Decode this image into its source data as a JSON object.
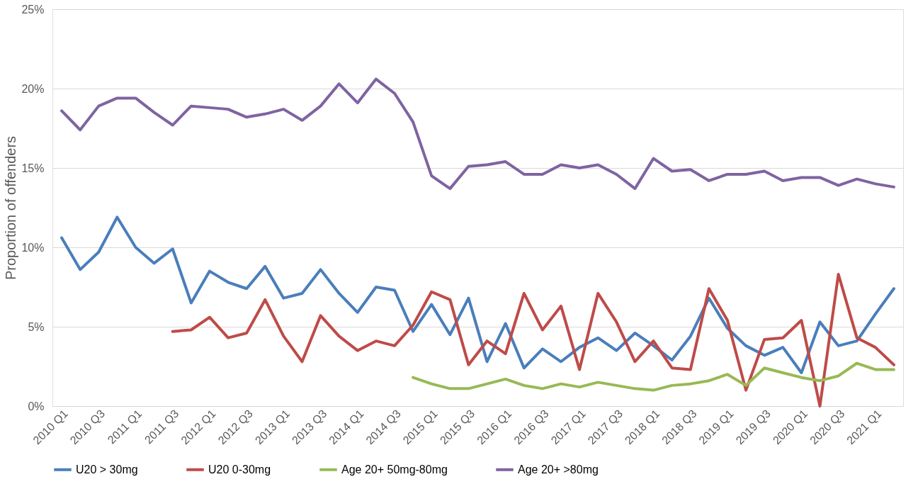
{
  "chart_data": {
    "type": "line",
    "ylabel": "Proportion of offenders",
    "categories": [
      "2010 Q1",
      null,
      "2010 Q3",
      null,
      "2011 Q1",
      null,
      "2011 Q3",
      null,
      "2012 Q1",
      null,
      "2012 Q3",
      null,
      "2013 Q1",
      null,
      "2013 Q3",
      null,
      "2014 Q1",
      null,
      "2014 Q3",
      null,
      "2015 Q1",
      null,
      "2015 Q3",
      null,
      "2016 Q1",
      null,
      "2016 Q3",
      null,
      "2017 Q1",
      null,
      "2017 Q3",
      null,
      "2018 Q1",
      null,
      "2018 Q3",
      null,
      "2019 Q1",
      null,
      "2019 Q3",
      null,
      "2020 Q1",
      null,
      "2020 Q3",
      null,
      "2021 Q1",
      null
    ],
    "series": [
      {
        "name": "U20 > 30mg",
        "color": "#4a7ebb",
        "values": [
          10.6,
          8.6,
          9.7,
          11.9,
          10.0,
          9.0,
          9.9,
          6.5,
          8.5,
          7.8,
          7.4,
          8.8,
          6.8,
          7.1,
          8.6,
          7.1,
          5.9,
          7.5,
          7.3,
          4.7,
          6.4,
          4.5,
          6.8,
          2.8,
          5.2,
          2.4,
          3.6,
          2.8,
          3.7,
          4.3,
          3.5,
          4.6,
          3.8,
          2.9,
          4.4,
          6.8,
          4.9,
          3.8,
          3.2,
          3.7,
          2.1,
          5.3,
          3.8,
          4.1,
          5.8,
          7.4
        ]
      },
      {
        "name": "U20 0-30mg",
        "color": "#be4b48",
        "values": [
          null,
          null,
          null,
          null,
          null,
          null,
          4.7,
          4.8,
          5.6,
          4.3,
          4.6,
          6.7,
          4.4,
          2.8,
          5.7,
          4.4,
          3.5,
          4.1,
          3.8,
          5.1,
          7.2,
          6.7,
          2.6,
          4.1,
          3.3,
          7.1,
          4.8,
          6.3,
          2.3,
          7.1,
          5.3,
          2.8,
          4.1,
          2.4,
          2.3,
          7.4,
          5.4,
          1.0,
          4.2,
          4.3,
          5.4,
          0.0,
          8.3,
          4.3,
          3.7,
          2.6
        ]
      },
      {
        "name": "Age 20+ 50mg-80mg",
        "color": "#98b954",
        "values": [
          null,
          null,
          null,
          null,
          null,
          null,
          null,
          null,
          null,
          null,
          null,
          null,
          null,
          null,
          null,
          null,
          null,
          null,
          null,
          1.8,
          1.4,
          1.1,
          1.1,
          1.4,
          1.7,
          1.3,
          1.1,
          1.4,
          1.2,
          1.5,
          1.3,
          1.1,
          1.0,
          1.3,
          1.4,
          1.6,
          2.0,
          1.3,
          2.4,
          2.1,
          1.8,
          1.6,
          1.9,
          2.7,
          2.3,
          2.3
        ]
      },
      {
        "name": "Age 20+ >80mg",
        "color": "#7f63a1",
        "values": [
          18.6,
          17.4,
          18.9,
          19.4,
          19.4,
          18.5,
          17.7,
          18.9,
          18.8,
          18.7,
          18.2,
          18.4,
          18.7,
          18.0,
          18.9,
          20.3,
          19.1,
          20.6,
          19.7,
          17.9,
          14.5,
          13.7,
          15.1,
          15.2,
          15.4,
          14.6,
          14.6,
          15.2,
          15.0,
          15.2,
          14.6,
          13.7,
          15.6,
          14.8,
          14.9,
          14.2,
          14.6,
          14.6,
          14.8,
          14.2,
          14.4,
          14.4,
          13.9,
          14.3,
          14.0,
          13.8
        ]
      }
    ],
    "ylim": [
      0,
      25
    ],
    "yticks": [
      {
        "value": 0,
        "label": "0%"
      },
      {
        "value": 5,
        "label": "5%"
      },
      {
        "value": 10,
        "label": "10%"
      },
      {
        "value": 15,
        "label": "15%"
      },
      {
        "value": 20,
        "label": "20%"
      },
      {
        "value": 25,
        "label": "25%"
      }
    ],
    "grid": "y",
    "legend": "bottom",
    "marker": "none",
    "line_style": "solid"
  }
}
